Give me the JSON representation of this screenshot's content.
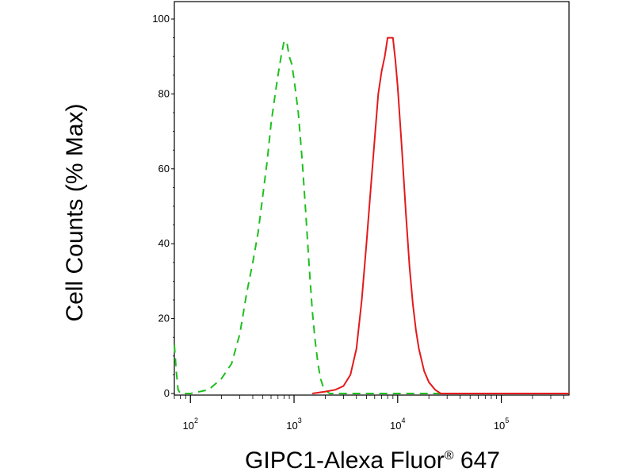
{
  "chart_data": {
    "type": "line",
    "xlabel": "GIPC1-Alexa Fluor",
    "xlabel_mark": "®",
    "xlabel_suffix": " 647",
    "ylabel": "Cell Counts (% Max)",
    "x_scale": "log",
    "xlim": [
      70,
      450000
    ],
    "ylim": [
      0,
      100
    ],
    "y_ticks": [
      0,
      20,
      40,
      60,
      80,
      100
    ],
    "x_ticks": [
      {
        "base": "10",
        "exp": "2",
        "value": 100
      },
      {
        "base": "10",
        "exp": "3",
        "value": 1000
      },
      {
        "base": "10",
        "exp": "4",
        "value": 10000
      },
      {
        "base": "10",
        "exp": "5",
        "value": 100000
      }
    ],
    "grid": false,
    "legend": "none",
    "series": [
      {
        "color": "#1fbf1f",
        "style": "dashed",
        "points": [
          [
            70,
            13
          ],
          [
            73,
            6
          ],
          [
            76,
            1
          ],
          [
            80,
            0
          ],
          [
            100,
            0
          ],
          [
            150,
            1
          ],
          [
            200,
            4
          ],
          [
            250,
            8
          ],
          [
            300,
            16
          ],
          [
            350,
            27
          ],
          [
            400,
            35
          ],
          [
            450,
            43
          ],
          [
            500,
            53
          ],
          [
            550,
            62
          ],
          [
            600,
            72
          ],
          [
            650,
            79
          ],
          [
            700,
            85
          ],
          [
            750,
            90
          ],
          [
            800,
            94
          ],
          [
            850,
            94
          ],
          [
            900,
            90
          ],
          [
            950,
            88
          ],
          [
            1000,
            84
          ],
          [
            1100,
            75
          ],
          [
            1200,
            62
          ],
          [
            1300,
            48
          ],
          [
            1400,
            34
          ],
          [
            1500,
            22
          ],
          [
            1600,
            14
          ],
          [
            1700,
            8
          ],
          [
            1800,
            4
          ],
          [
            1900,
            2
          ],
          [
            2000,
            1
          ],
          [
            2200,
            0
          ],
          [
            450000,
            0
          ]
        ]
      },
      {
        "color": "#e31a1c",
        "style": "solid",
        "points": [
          [
            1500,
            0
          ],
          [
            2000,
            0.5
          ],
          [
            2500,
            1
          ],
          [
            3000,
            2
          ],
          [
            3500,
            5
          ],
          [
            4000,
            12
          ],
          [
            4500,
            25
          ],
          [
            5000,
            40
          ],
          [
            5500,
            55
          ],
          [
            6000,
            68
          ],
          [
            6500,
            80
          ],
          [
            7000,
            86
          ],
          [
            7500,
            90
          ],
          [
            8000,
            95
          ],
          [
            8500,
            95
          ],
          [
            9000,
            95
          ],
          [
            9500,
            89
          ],
          [
            10000,
            82
          ],
          [
            11000,
            65
          ],
          [
            12000,
            48
          ],
          [
            13000,
            34
          ],
          [
            14000,
            24
          ],
          [
            15000,
            17
          ],
          [
            16000,
            12
          ],
          [
            18000,
            6
          ],
          [
            20000,
            3
          ],
          [
            23000,
            1
          ],
          [
            26000,
            0
          ],
          [
            450000,
            0
          ]
        ]
      }
    ]
  }
}
